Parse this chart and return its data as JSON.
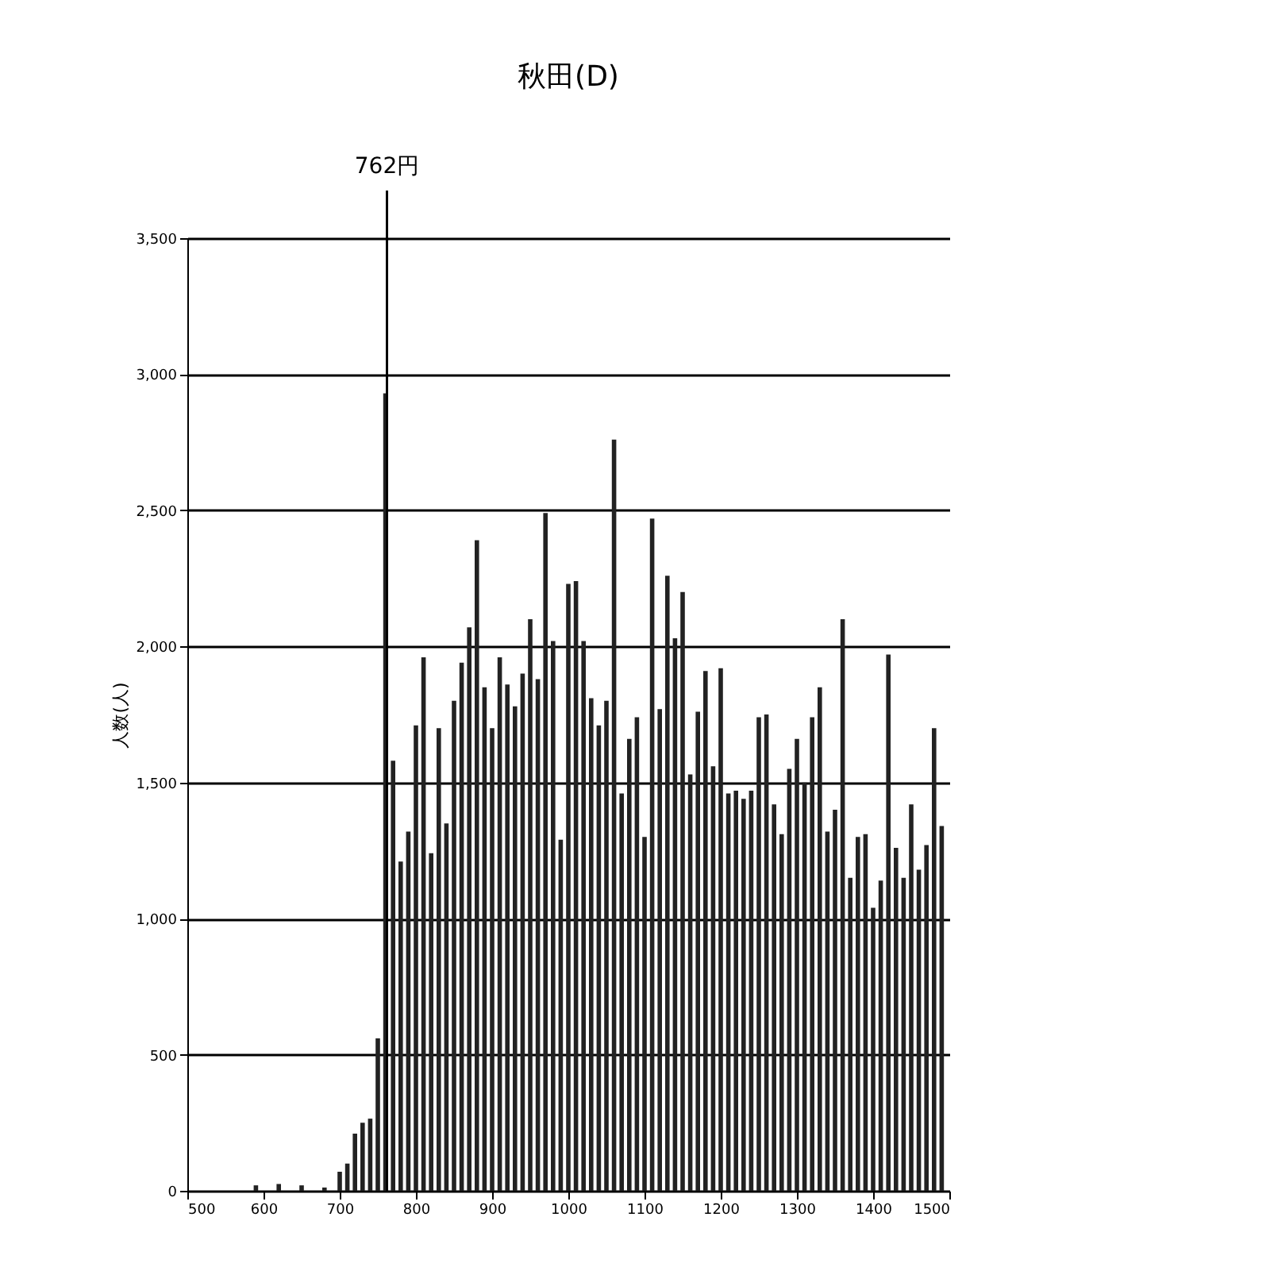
{
  "chart_data": {
    "type": "histogram",
    "title": "秋田(D)",
    "ylabel": "人数(人)",
    "bins": [
      585,
      595,
      605,
      615,
      625,
      635,
      645,
      655,
      665,
      675,
      685,
      695,
      705,
      715,
      725,
      735,
      745,
      755,
      765,
      775,
      785,
      795,
      805,
      815,
      825,
      835,
      845,
      855,
      865,
      875,
      885,
      895,
      905,
      915,
      925,
      935,
      945,
      955,
      965,
      975,
      985,
      995,
      1005,
      1015,
      1025,
      1035,
      1045,
      1055,
      1065,
      1075,
      1085,
      1095,
      1105,
      1115,
      1125,
      1135,
      1145,
      1155,
      1165,
      1175,
      1185,
      1195,
      1205,
      1215,
      1225,
      1235,
      1245,
      1255,
      1265,
      1275,
      1285,
      1295,
      1305,
      1315,
      1325,
      1335,
      1345,
      1355,
      1365,
      1375,
      1385,
      1395,
      1405,
      1415,
      1425,
      1435,
      1445,
      1455,
      1465,
      1475,
      1485,
      1495
    ],
    "values": [
      20,
      0,
      0,
      25,
      0,
      0,
      20,
      0,
      0,
      12,
      0,
      70,
      100,
      210,
      250,
      265,
      560,
      2930,
      1580,
      1210,
      1320,
      1710,
      1960,
      1240,
      1700,
      1350,
      1800,
      1940,
      2070,
      2390,
      1850,
      1700,
      1960,
      1860,
      1780,
      1900,
      2100,
      1880,
      2490,
      2020,
      1290,
      2230,
      2240,
      2020,
      1810,
      1710,
      1800,
      2760,
      1460,
      1660,
      1740,
      1300,
      2470,
      1770,
      2260,
      2030,
      2200,
      1530,
      1760,
      1910,
      1560,
      1920,
      1460,
      1470,
      1440,
      1470,
      1740,
      1750,
      1420,
      1310,
      1550,
      1660,
      1500,
      1740,
      1850,
      1320,
      1400,
      2100,
      1150,
      1300,
      1310,
      1040,
      1140,
      1970,
      1260,
      1150,
      1420,
      1180,
      1270,
      1700,
      1340
    ],
    "colors": [
      "#222222",
      "#222222",
      "#222222",
      "#222222",
      "#222222",
      "#222222",
      "#222222",
      "#222222",
      "#222222",
      "#222222",
      "#222222",
      "#222222",
      "#222222",
      "#222222",
      "#222222",
      "#222222",
      "#222222",
      "#222222",
      "#222222",
      "#222222",
      "#222222",
      "#222222",
      "#222222",
      "#222222",
      "#222222",
      "#222222",
      "#222222",
      "#222222",
      "#222222",
      "#222222",
      "#222222",
      "#222222",
      "#222222",
      "#222222",
      "#222222",
      "#222222",
      "#222222",
      "#222222",
      "#222222",
      "#222222",
      "#222222",
      "#222222",
      "#222222",
      "#222222",
      "#222222",
      "#222222",
      "#222222",
      "#222222",
      "#222222",
      "#222222",
      "#222222",
      "#222222",
      "#222222",
      "#222222",
      "#222222",
      "#222222",
      "#222222",
      "#222222",
      "#222222",
      "#222222",
      "#222222",
      "#222222",
      "#222222",
      "#222222",
      "#222222",
      "#222222",
      "#222222",
      "#222222",
      "#222222",
      "#222222",
      "#222222",
      "#222222",
      "#222222",
      "#222222",
      "#222222",
      "#222222",
      "#222222",
      "#222222",
      "#222222",
      "#222222",
      "#222222",
      "#222222",
      "#222222",
      "#222222",
      "#222222",
      "#222222",
      "#222222",
      "#222222",
      "#222222",
      "#222222",
      "#222222"
    ],
    "xlim": [
      500,
      1500
    ],
    "xticks": [
      500,
      600,
      700,
      800,
      900,
      1000,
      1100,
      1200,
      1300,
      1400,
      1500
    ],
    "ylim": [
      0,
      3500
    ],
    "yticks": [
      {
        "value": 0,
        "label": "0"
      },
      {
        "value": 500,
        "label": "500"
      },
      {
        "value": 1000,
        "label": "1,000"
      },
      {
        "value": 1500,
        "label": "1,500"
      },
      {
        "value": 2000,
        "label": "2,000"
      },
      {
        "value": 2500,
        "label": "2,500"
      },
      {
        "value": 3000,
        "label": "3,000"
      },
      {
        "value": 3500,
        "label": "3,500"
      }
    ],
    "grid": "y",
    "ref_lines": [
      {
        "axis": "x",
        "value": 762,
        "label": "762円",
        "color": "#000000"
      }
    ]
  }
}
